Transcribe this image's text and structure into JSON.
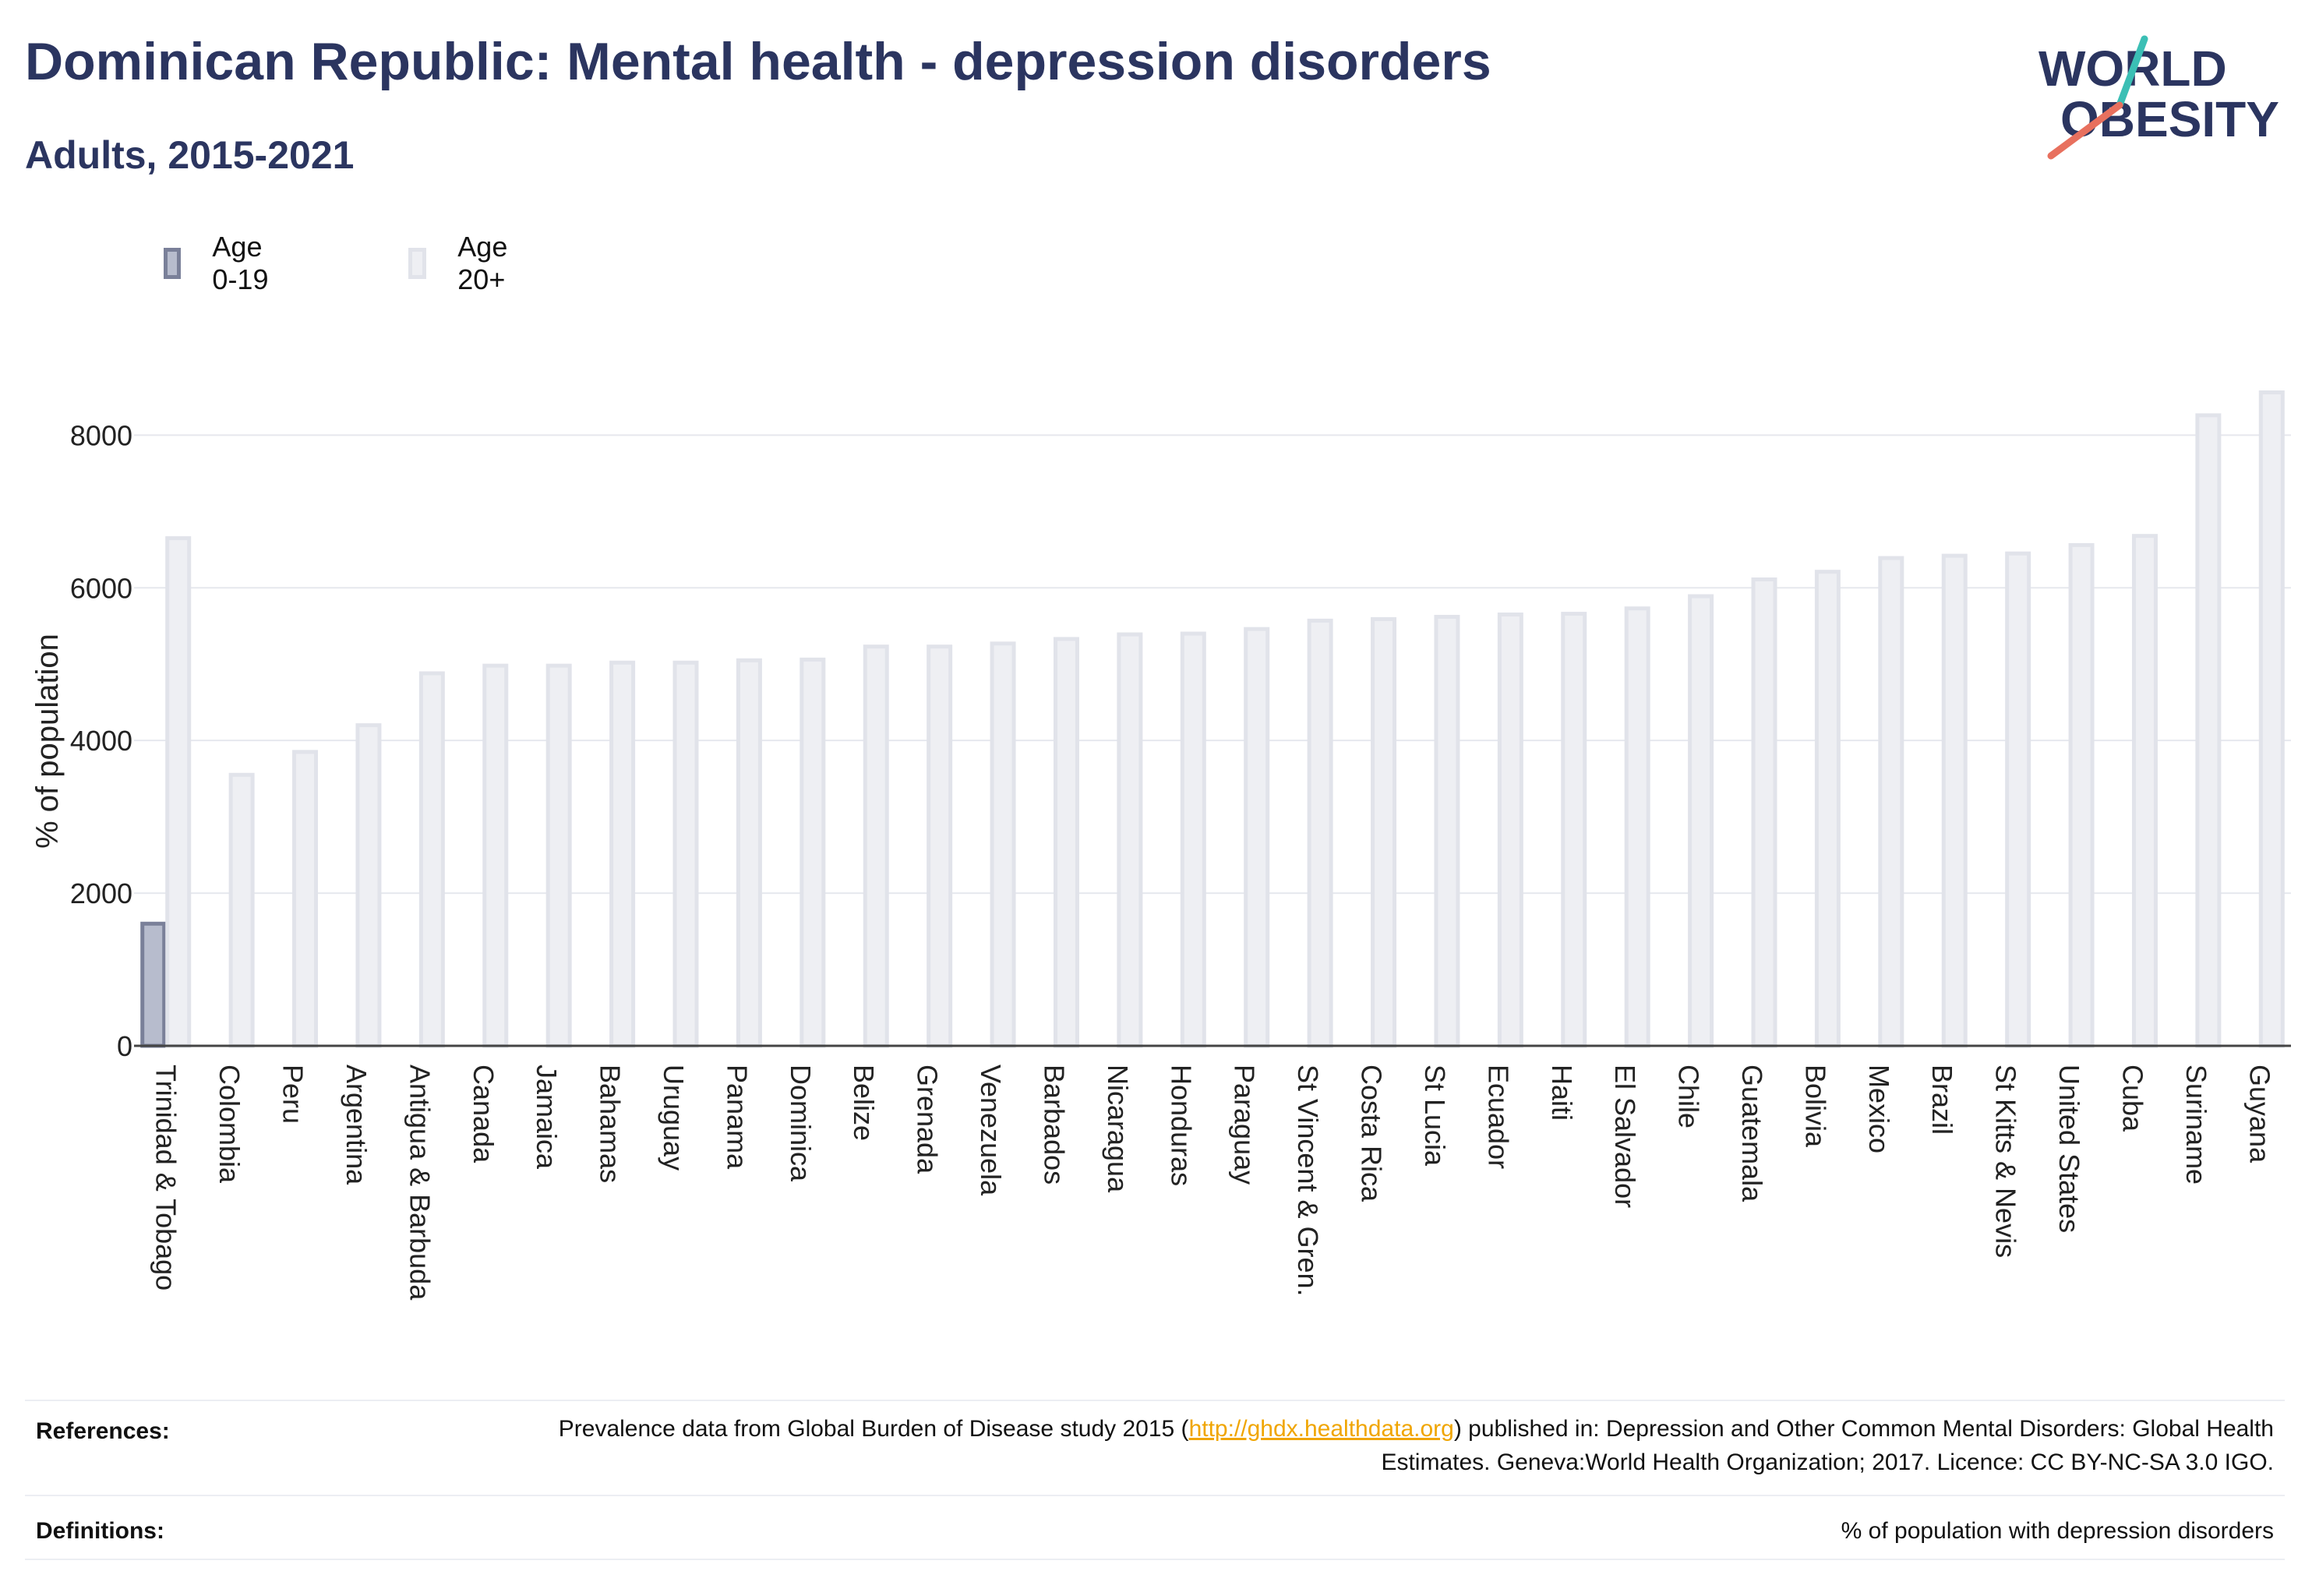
{
  "header": {
    "title": "Dominican Republic: Mental health - depression disorders",
    "subtitle": "Adults, 2015-2021"
  },
  "logo": {
    "line1": "WORLD",
    "line2": "OBESITY",
    "line1_color": "#2b3560",
    "slash_teal": "#3bbfb5",
    "slash_coral": "#e8705e"
  },
  "legend": {
    "items": [
      {
        "label": "Age 0-19",
        "color": "#b7bccd"
      },
      {
        "label": "Age 20+",
        "color": "#eeeff3"
      }
    ]
  },
  "chart_data": {
    "type": "bar",
    "title": "Dominican Republic: Mental health - depression disorders",
    "subtitle": "Adults, 2015-2021",
    "ylabel": "% of population",
    "xlabel": "",
    "ylim": [
      0,
      8800
    ],
    "yticks": [
      0,
      2000,
      4000,
      6000,
      8000
    ],
    "grid": true,
    "legend_position": "top-left",
    "categories": [
      "Trinidad & Tobago",
      "Colombia",
      "Peru",
      "Argentina",
      "Antigua & Barbuda",
      "Canada",
      "Jamaica",
      "Bahamas",
      "Uruguay",
      "Panama",
      "Dominica",
      "Belize",
      "Grenada",
      "Venezuela",
      "Barbados",
      "Nicaragua",
      "Honduras",
      "Paraguay",
      "St Vincent & Gren.",
      "Costa Rica",
      "St Lucia",
      "Ecuador",
      "Haiti",
      "El Salvador",
      "Chile",
      "Guatemala",
      "Bolivia",
      "Mexico",
      "Brazil",
      "St Kitts & Nevis",
      "United States",
      "Cuba",
      "Suriname",
      "Guyana"
    ],
    "series": [
      {
        "name": "Age 0-19",
        "color": "#b7bccd",
        "border": "#7a8099",
        "values": [
          1600,
          null,
          null,
          null,
          null,
          null,
          null,
          null,
          null,
          null,
          null,
          null,
          null,
          null,
          null,
          null,
          null,
          null,
          null,
          null,
          null,
          null,
          null,
          null,
          null,
          null,
          null,
          null,
          null,
          null,
          null,
          null,
          null,
          null
        ]
      },
      {
        "name": "Age 20+",
        "color": "#eeeff3",
        "border": "#e1e3ea",
        "values": [
          6650,
          3550,
          3850,
          4200,
          4880,
          4980,
          4980,
          5020,
          5020,
          5050,
          5060,
          5230,
          5230,
          5270,
          5330,
          5390,
          5400,
          5460,
          5570,
          5590,
          5620,
          5650,
          5660,
          5730,
          5890,
          6110,
          6210,
          6390,
          6420,
          6450,
          6560,
          6680,
          8260,
          8560
        ]
      }
    ]
  },
  "footer": {
    "references_label": "References:",
    "references_pre": "Prevalence data from Global Burden of Disease study 2015 (",
    "references_link": "http://ghdx.healthdata.org",
    "references_post": ") published in: Depression and Other Common Mental Disorders: Global Health Estimates. Geneva:World Health Organization; 2017. Licence: CC BY-NC-SA 3.0 IGO.",
    "definitions_label": "Definitions:",
    "definitions_text": "% of population with depression disorders"
  }
}
